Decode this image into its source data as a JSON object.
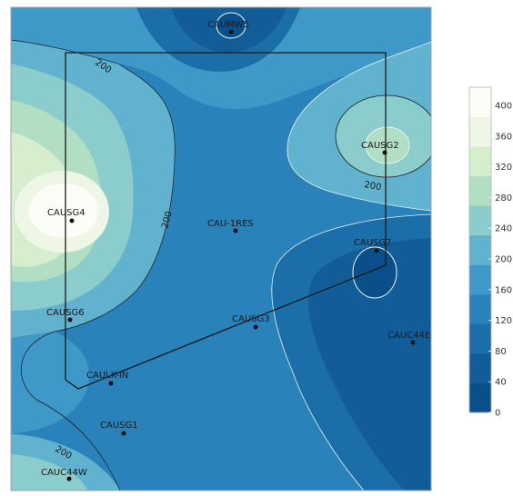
{
  "colors": {
    "c0_40": "#0b4f8a",
    "c40_80": "#125d98",
    "c80_120": "#1c6ea8",
    "c120_160": "#2a82bb",
    "c160_200": "#3f99c8",
    "c200_240": "#61b2cf",
    "c240_280": "#8bcccd",
    "c280_320": "#b2dfc4",
    "c320_360": "#d6edce",
    "c360_400": "#eef7e5",
    "c400_plus": "#fbfdf6",
    "boundary": "#1a1a1a",
    "contour_line": "#e8f3f3"
  },
  "contours": {
    "label_200": "200"
  },
  "sites": [
    {
      "id": "caumw5",
      "label": "CAUMW5"
    },
    {
      "id": "causg2",
      "label": "CAUSG2"
    },
    {
      "id": "causg4",
      "label": "CAUSG4"
    },
    {
      "id": "cau1res",
      "label": "CAU-1RES"
    },
    {
      "id": "causg7",
      "label": "CAUSG7"
    },
    {
      "id": "causg6",
      "label": "CAUSG6"
    },
    {
      "id": "causg3",
      "label": "CAUSG3"
    },
    {
      "id": "cauc44e",
      "label": "CAUC44E"
    },
    {
      "id": "caulkin",
      "label": "CAULK-IN"
    },
    {
      "id": "causg1",
      "label": "CAUSG1"
    },
    {
      "id": "cauc44w",
      "label": "CAUC44W"
    }
  ],
  "legend": {
    "ticks": [
      "0",
      "40",
      "80",
      "120",
      "160",
      "200",
      "240",
      "280",
      "320",
      "360",
      "400"
    ],
    "colors": [
      "#0b4f8a",
      "#125d98",
      "#1c6ea8",
      "#2a82bb",
      "#3f99c8",
      "#61b2cf",
      "#8bcccd",
      "#b2dfc4",
      "#d6edce",
      "#eef7e5",
      "#fbfdf6"
    ]
  }
}
